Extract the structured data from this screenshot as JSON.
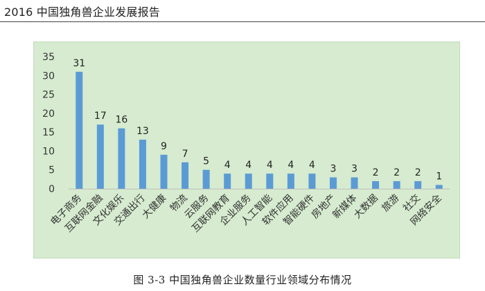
{
  "header": {
    "title": "2016 中国独角兽企业发展报告"
  },
  "caption": "图 3-3  中国独角兽企业数量行业领域分布情况",
  "chart_data": {
    "type": "bar",
    "categories": [
      "电子商务",
      "互联网金融",
      "文化娱乐",
      "交通出行",
      "大健康",
      "物流",
      "云服务",
      "互联网教育",
      "企业服务",
      "人工智能",
      "软件应用",
      "智能硬件",
      "房地产",
      "新媒体",
      "大数据",
      "旅游",
      "社交",
      "网络安全"
    ],
    "values": [
      31,
      17,
      16,
      13,
      9,
      7,
      5,
      4,
      4,
      4,
      4,
      4,
      3,
      3,
      2,
      2,
      2,
      1
    ],
    "yticks": [
      "0",
      "5",
      "10",
      "15",
      "20",
      "25",
      "30",
      "35"
    ],
    "ylim": [
      0,
      35
    ],
    "grid": false,
    "legend": "none",
    "bar_color": "#5b9bd5",
    "background_color": "#d6ebcf"
  }
}
